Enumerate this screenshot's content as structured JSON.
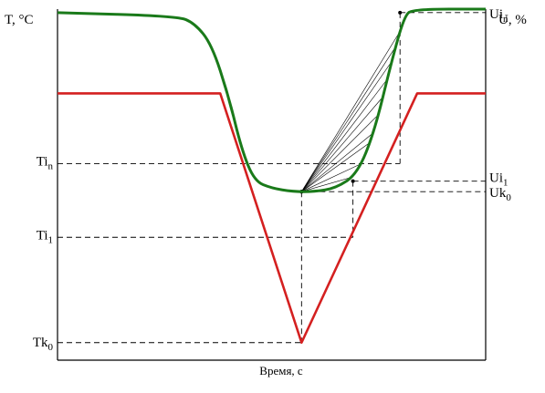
{
  "chart_data": {
    "type": "line",
    "y_left_label": "T, °C",
    "y_right_label": "U, %",
    "xlabel": "Время, с",
    "left_ticks": [
      {
        "base": "Ti",
        "sub": "n"
      },
      {
        "base": "Ti",
        "sub": "1"
      },
      {
        "base": "Tk",
        "sub": "0"
      }
    ],
    "right_ticks": [
      {
        "base": "Ui",
        "sub": "n"
      },
      {
        "base": "Ui",
        "sub": "1"
      },
      {
        "base": "Uk",
        "sub": "0"
      }
    ],
    "series": [
      {
        "curve": "temperature",
        "color": "#d42020",
        "points": [
          [
            0.0,
            0.76
          ],
          [
            0.38,
            0.76
          ],
          [
            0.57,
            0.05
          ],
          [
            0.84,
            0.76
          ],
          [
            1.0,
            0.76
          ]
        ]
      },
      {
        "curve": "humidity",
        "color": "#1a7a1a",
        "points": [
          [
            0.0,
            0.99
          ],
          [
            0.28,
            0.98
          ],
          [
            0.32,
            0.96
          ],
          [
            0.36,
            0.9
          ],
          [
            0.4,
            0.75
          ],
          [
            0.43,
            0.6
          ],
          [
            0.46,
            0.51
          ],
          [
            0.5,
            0.49
          ],
          [
            0.55,
            0.48
          ],
          [
            0.6,
            0.48
          ],
          [
            0.65,
            0.49
          ],
          [
            0.7,
            0.53
          ],
          [
            0.74,
            0.65
          ],
          [
            0.78,
            0.85
          ],
          [
            0.81,
            0.98
          ],
          [
            0.83,
            1.0
          ],
          [
            1.0,
            1.0
          ]
        ]
      }
    ],
    "color_pointer_lines": "#000000"
  }
}
